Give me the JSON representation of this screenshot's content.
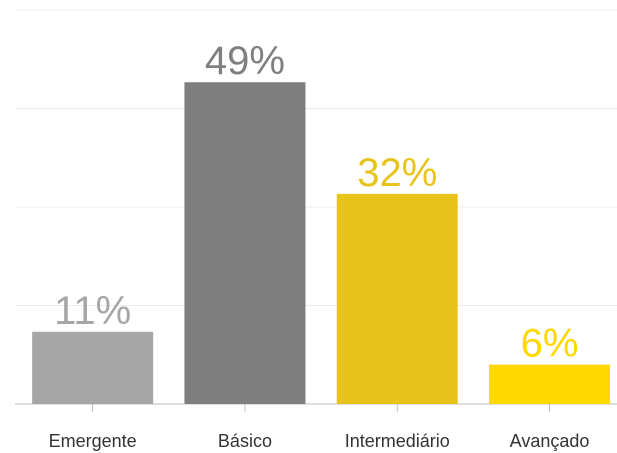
{
  "chart_data": {
    "type": "bar",
    "categories": [
      "Emergente",
      "Básico",
      "Intermediário",
      "Avançado"
    ],
    "values": [
      11,
      49,
      32,
      6
    ],
    "value_labels": [
      "11%",
      "49%",
      "32%",
      "6%"
    ],
    "colors": [
      "#a6a6a6",
      "#7f7f7f",
      "#e8c31c",
      "#ffd800"
    ],
    "ylim": [
      0,
      60
    ],
    "yticks": [
      0,
      15,
      30,
      45,
      60
    ],
    "grid": true
  }
}
